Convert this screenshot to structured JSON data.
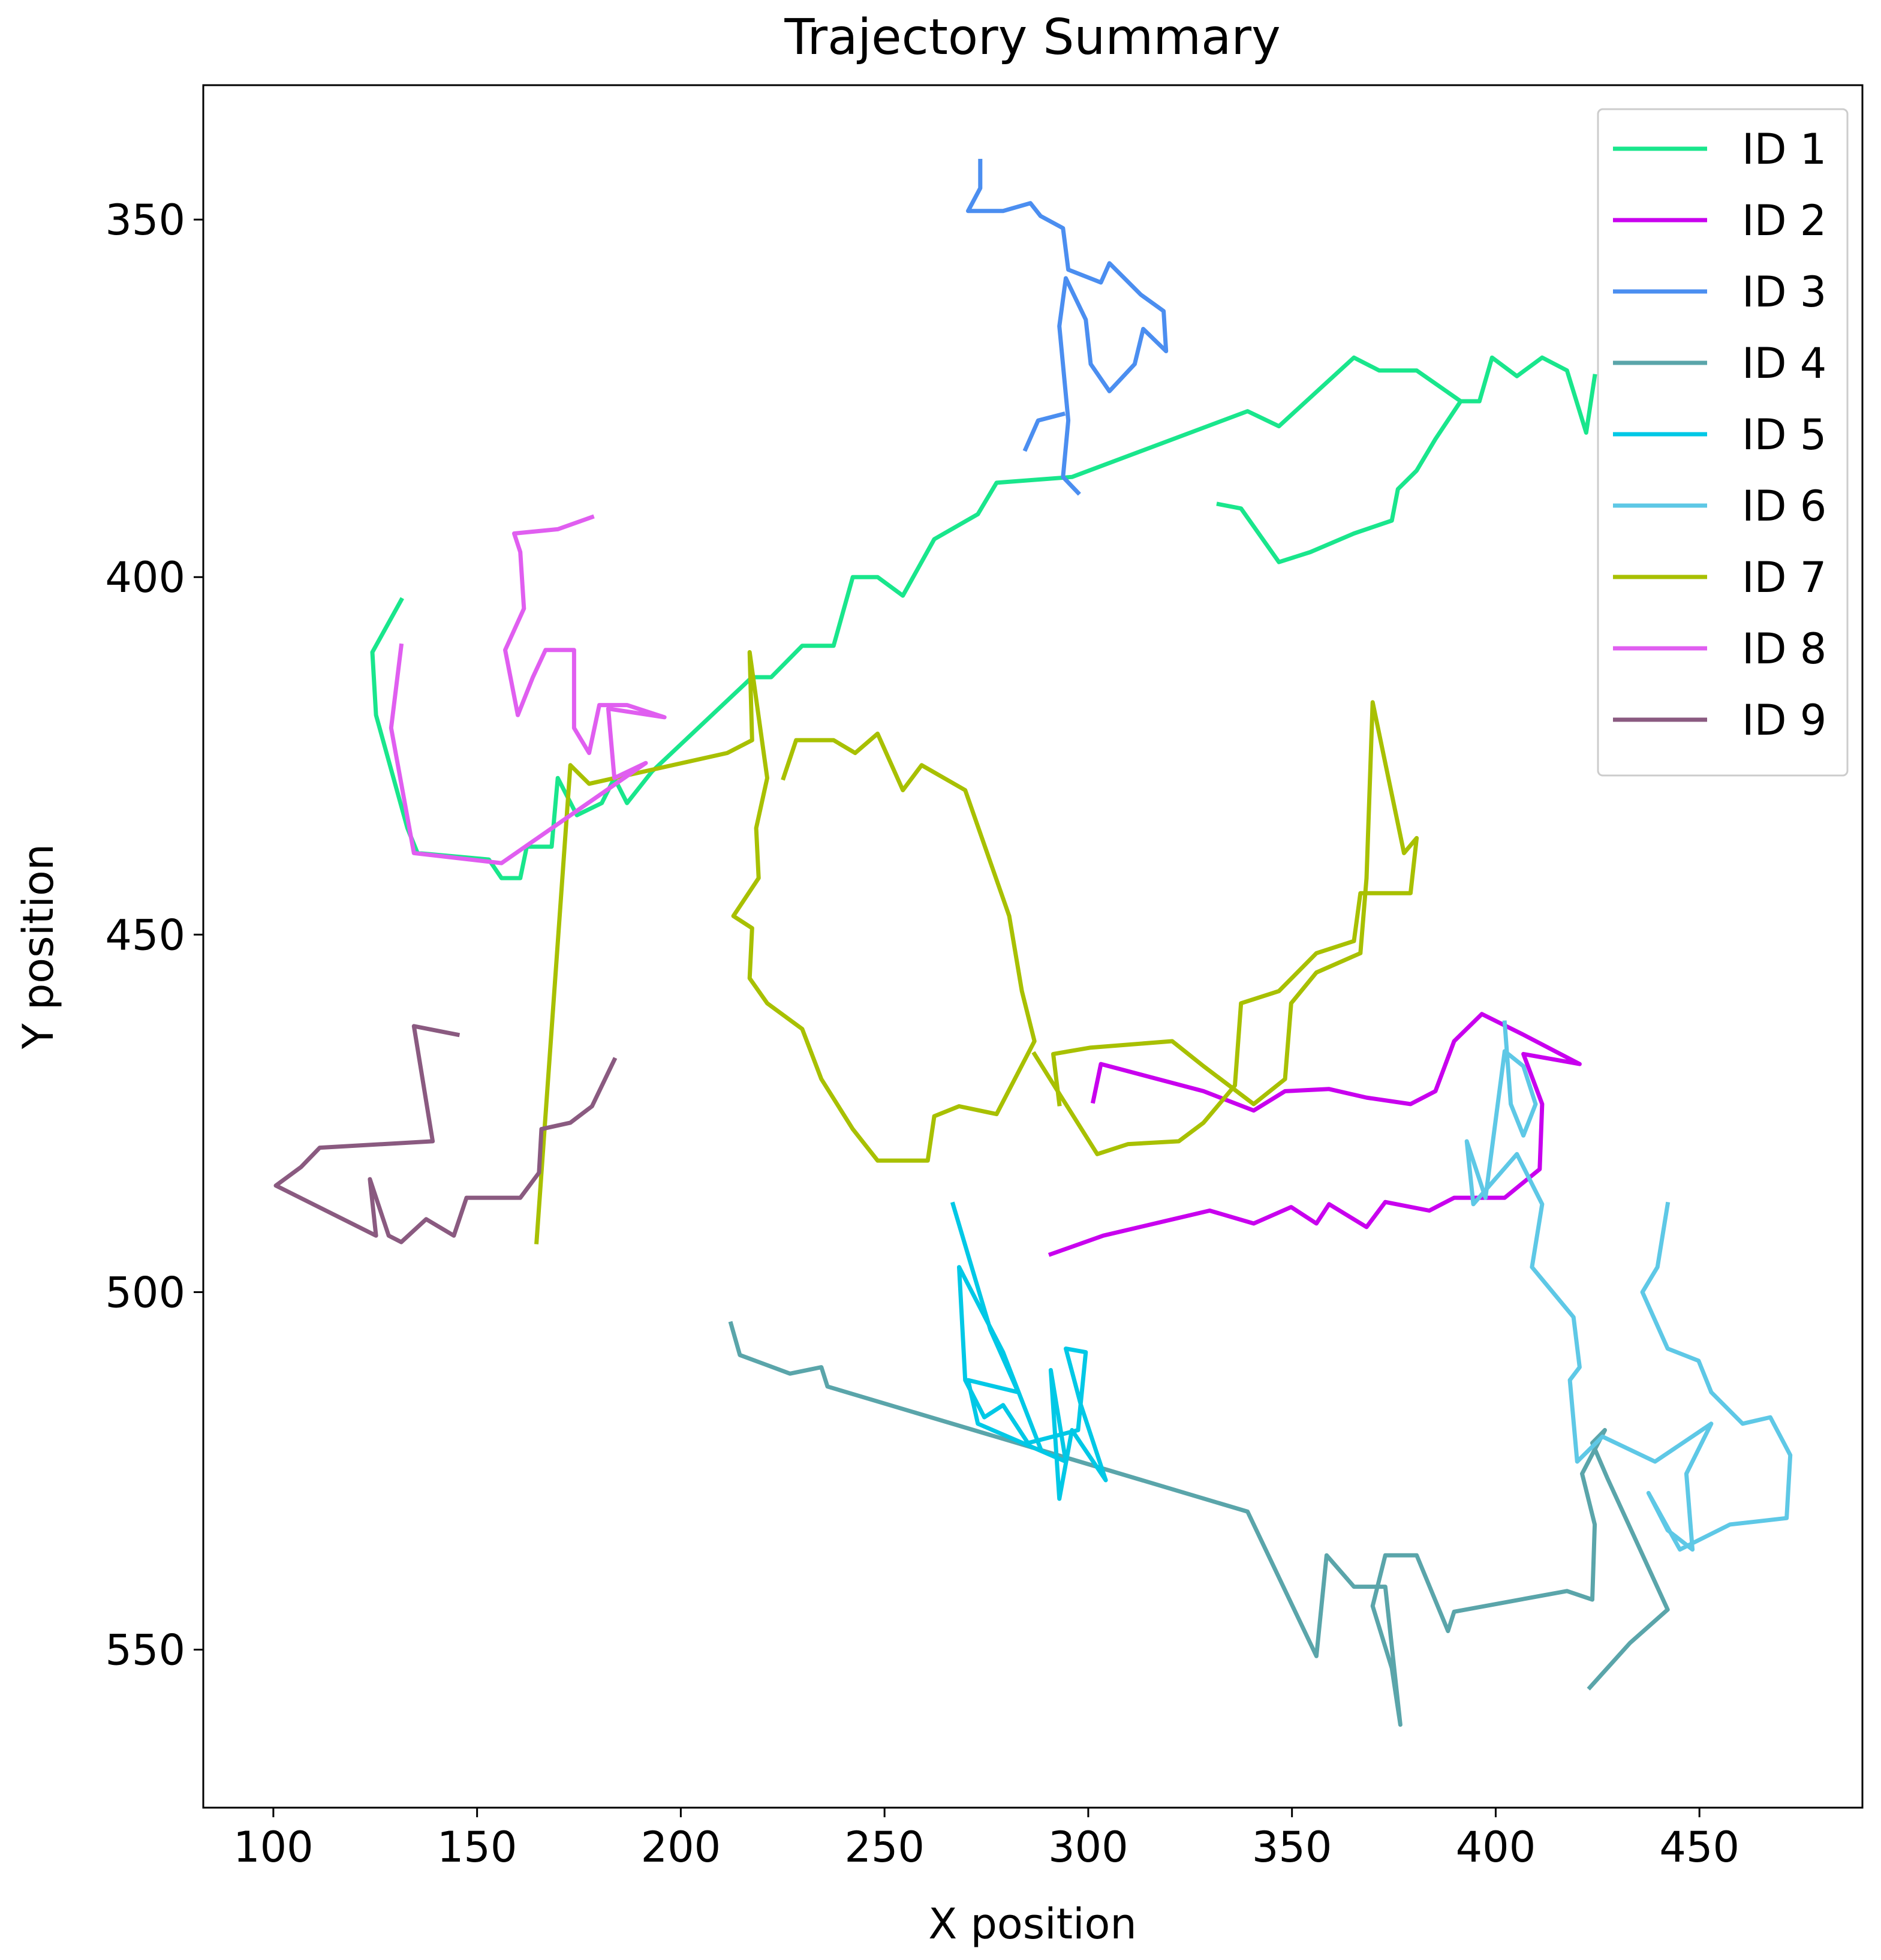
{
  "chart_data": {
    "type": "line",
    "title": "Trajectory Summary",
    "x_label": "X position",
    "y_label": "Y position",
    "xlim": [
      82.8,
      490
    ],
    "ylim": [
      572.1,
      331.2
    ],
    "xticks": [
      100,
      150,
      200,
      250,
      300,
      350,
      400,
      450
    ],
    "yticks": [
      350,
      400,
      450,
      500,
      550
    ],
    "grid": false,
    "legend": "upper right",
    "series": [
      {
        "name": "ID 1",
        "color": "#19e68c",
        "x": [
          131.4,
          124.3,
          125.2,
          132.9,
          135.4,
          152.9,
          156.0,
          160.6,
          162.2,
          168.3,
          169.8,
          174.5,
          180.6,
          183.7,
          186.8,
          192.9,
          217.5,
          222.2,
          229.8,
          237.5,
          242.2,
          248.3,
          254.5,
          262.2,
          272.9,
          277.5,
          296.0,
          339.1,
          346.8,
          365.2,
          371.4,
          380.6,
          391.4,
          396.0,
          399.1,
          405.2,
          411.4,
          417.5,
          422.2,
          424.3,
          null,
          391.4,
          385.2,
          380.6,
          376.0,
          374.5,
          365.2,
          354.5,
          346.8,
          337.5,
          332.0
        ],
        "y": [
          403.2,
          410.5,
          419.3,
          435.1,
          438.6,
          439.5,
          442.1,
          442.1,
          437.7,
          437.7,
          428.1,
          433.3,
          431.6,
          428.1,
          431.6,
          427.2,
          414.0,
          414.0,
          409.6,
          409.6,
          400.0,
          400.0,
          402.6,
          394.7,
          391.2,
          386.8,
          386.0,
          376.8,
          378.9,
          369.3,
          371.1,
          371.1,
          375.4,
          375.4,
          369.3,
          371.9,
          369.3,
          371.1,
          379.8,
          371.9,
          null,
          375.4,
          380.7,
          385.1,
          387.7,
          392.1,
          393.9,
          396.5,
          397.9,
          390.4,
          389.8
        ]
      },
      {
        "name": "ID 2",
        "color": "#c800ee",
        "x": [
          301.2,
          303.1,
          328.3,
          340.6,
          348.3,
          359.1,
          368.3,
          379.1,
          385.2,
          389.8,
          396.6,
          406.8,
          420.6,
          406.8,
          411.4,
          410.8,
          402.2,
          389.8,
          383.7,
          372.9,
          368.3,
          359.1,
          356.0,
          349.8,
          340.6,
          329.8,
          303.7,
          290.8
        ],
        "y": [
          473.3,
          468.1,
          471.9,
          474.6,
          471.9,
          471.6,
          472.8,
          473.7,
          471.9,
          464.9,
          461.1,
          464.0,
          468.1,
          466.7,
          473.7,
          482.8,
          486.8,
          486.8,
          488.6,
          487.4,
          490.9,
          487.7,
          490.4,
          488.1,
          490.4,
          488.6,
          492.1,
          494.7
        ]
      },
      {
        "name": "ID 3",
        "color": "#4b8ef0",
        "x": [
          273.5,
          273.5,
          270.5,
          279.1,
          285.8,
          288.3,
          293.8,
          295.1,
          303.1,
          305.2,
          312.9,
          318.5,
          319.1,
          313.5,
          311.4,
          305.2,
          300.6,
          299.4,
          294.5,
          292.9,
          295.1,
          293.8,
          297.5,
          null,
          293.8,
          287.7,
          284.6
        ],
        "y": [
          341.8,
          345.6,
          348.8,
          348.8,
          347.7,
          349.5,
          351.2,
          357.0,
          358.8,
          356.1,
          360.5,
          362.8,
          368.4,
          365.3,
          370.2,
          374.0,
          370.2,
          364.0,
          358.2,
          364.9,
          378.1,
          386.0,
          388.2,
          null,
          377.2,
          378.1,
          382.1
        ]
      },
      {
        "name": "ID 4",
        "color": "#5aa5aa",
        "x": [
          212.3,
          214.5,
          226.8,
          234.5,
          236.0,
          339.1,
          356.0,
          358.5,
          365.2,
          372.9,
          376.6,
          374.5,
          369.8,
          372.9,
          380.6,
          388.3,
          389.8,
          417.5,
          423.7,
          424.3,
          421.2,
          426.8,
          423.7,
          427.4,
          442.2,
          432.9,
          423.1
        ],
        "y": [
          504.4,
          508.8,
          511.4,
          510.5,
          513.2,
          530.7,
          550.9,
          536.8,
          541.2,
          541.2,
          560.5,
          552.6,
          543.9,
          536.8,
          536.8,
          547.4,
          544.7,
          541.8,
          543.0,
          532.5,
          525.4,
          519.3,
          521.1,
          526.0,
          544.4,
          549.1,
          555.3
        ]
      },
      {
        "name": "ID 5",
        "color": "#00c8e6",
        "x": [
          266.8,
          276.0,
          282.8,
          270.5,
          272.9,
          294.5,
          290.8,
          292.9,
          296.0,
          304.3,
          298.2,
          294.5,
          299.4,
          297.5,
          285.2,
          279.1,
          274.5,
          269.8,
          268.3,
          279.1,
          288.3
        ],
        "y": [
          487.7,
          505.3,
          514.0,
          512.3,
          518.4,
          523.7,
          510.9,
          528.9,
          519.3,
          526.3,
          515.8,
          507.9,
          508.4,
          519.3,
          521.1,
          515.8,
          517.5,
          512.3,
          496.5,
          508.4,
          521.9
        ]
      },
      {
        "name": "ID 6",
        "color": "#5ec8e6",
        "x": [
          402.2,
          403.7,
          406.8,
          409.8,
          406.8,
          402.2,
          397.5,
          392.9,
          394.5,
          405.2,
          411.4,
          408.9,
          419.1,
          420.6,
          418.2,
          420.0,
          426.2,
          439.1,
          452.9,
          446.8,
          448.3,
          442.2,
          437.5,
          445.2,
          457.5,
          471.4,
          472.3,
          467.4,
          460.6,
          452.9,
          449.8,
          442.2,
          436.0,
          439.7,
          442.2
        ],
        "y": [
          462.3,
          473.7,
          478.1,
          473.7,
          468.4,
          466.3,
          486.8,
          478.9,
          487.7,
          480.7,
          487.7,
          496.5,
          503.5,
          510.5,
          512.3,
          523.7,
          520.2,
          523.7,
          518.4,
          525.4,
          536.0,
          533.3,
          528.1,
          536.0,
          532.5,
          531.6,
          522.8,
          517.5,
          518.4,
          514.0,
          509.6,
          507.9,
          500.0,
          496.5,
          487.7
        ]
      },
      {
        "name": "ID 7",
        "color": "#a8c000",
        "x": [
          164.6,
          172.9,
          177.5,
          211.4,
          217.5,
          216.9,
          221.2,
          218.5,
          219.1,
          212.9,
          217.5,
          216.9,
          221.2,
          229.8,
          234.5,
          242.2,
          248.3,
          260.6,
          262.2,
          268.3,
          277.5,
          286.8,
          283.7,
          280.6,
          269.8,
          259.1,
          254.5,
          248.3,
          242.8,
          237.5,
          228.3,
          225.2,
          null,
          286.8,
          294.5,
          302.2,
          309.8,
          322.2,
          328.3,
          336.0,
          337.5,
          346.8,
          356.0,
          365.2,
          366.8,
          379.1,
          380.6,
          377.5,
          369.8,
          368.3,
          366.8,
          356.0,
          349.8,
          348.3,
          340.6,
          328.3,
          320.6,
          300.6,
          291.4,
          292.9
        ],
        "y": [
          493.0,
          426.3,
          428.9,
          424.6,
          422.8,
          410.5,
          428.1,
          435.1,
          442.1,
          447.4,
          449.1,
          456.1,
          459.6,
          463.2,
          470.2,
          477.2,
          481.6,
          481.6,
          475.4,
          474.0,
          475.1,
          464.9,
          457.9,
          447.4,
          429.8,
          426.3,
          429.8,
          421.9,
          424.6,
          422.8,
          422.8,
          428.1,
          null,
          466.7,
          473.7,
          480.7,
          479.3,
          478.9,
          476.3,
          471.1,
          459.6,
          457.9,
          452.6,
          450.9,
          444.2,
          444.2,
          436.5,
          438.6,
          417.5,
          442.1,
          452.6,
          455.3,
          459.6,
          470.2,
          473.7,
          468.4,
          464.9,
          465.8,
          466.7,
          473.7
        ]
      },
      {
        "name": "ID 8",
        "color": "#e05ef0",
        "x": [
          131.4,
          128.9,
          134.5,
          156.0,
          191.4,
          183.7,
          182.2,
          196.0,
          186.8,
          180.0,
          177.5,
          173.8,
          173.8,
          166.8,
          163.7,
          160.0,
          156.9,
          161.5,
          160.6,
          159.1,
          169.8,
          178.2
        ],
        "y": [
          409.6,
          421.1,
          438.6,
          440.0,
          426.0,
          428.1,
          418.4,
          419.6,
          417.9,
          417.9,
          424.6,
          421.1,
          410.2,
          410.2,
          414.0,
          419.3,
          410.2,
          404.4,
          396.5,
          393.9,
          393.3,
          391.6
        ]
      },
      {
        "name": "ID 9",
        "color": "#8a5a80",
        "x": [
          145.2,
          134.5,
          139.1,
          111.4,
          106.8,
          100.6,
          125.2,
          123.7,
          128.3,
          131.4,
          137.5,
          144.3,
          147.4,
          160.6,
          165.2,
          165.8,
          172.9,
          178.2,
          183.7
        ],
        "y": [
          464.0,
          462.8,
          478.9,
          479.8,
          482.5,
          485.1,
          492.1,
          484.2,
          492.1,
          493.0,
          489.8,
          492.1,
          486.8,
          486.8,
          483.3,
          477.2,
          476.3,
          474.0,
          467.5
        ]
      }
    ]
  }
}
